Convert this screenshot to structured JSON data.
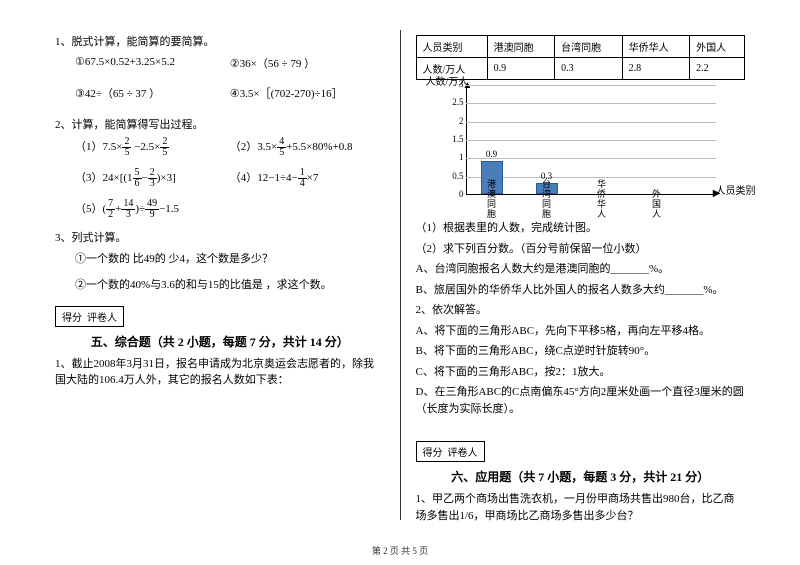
{
  "left": {
    "p1_title": "1、脱式计算，能简算的要简算。",
    "p1_items": [
      "①67.5×0.52+3.25×5.2",
      "②36×（56 ÷ 79 ）",
      "③42÷（65 ÷ 37 ）",
      "④3.5×［(702-270)÷16］"
    ],
    "p2_title": "2、计算，能简算得写出过程。",
    "p2_1_pre": "（1）7.5×",
    "p2_1_f1n": "2",
    "p2_1_f1d": "5",
    "p2_1_mid": " −2.5×",
    "p2_1_f2n": "2",
    "p2_1_f2d": "5",
    "p2_2_pre": "（2）",
    "p2_2_a": "3.5×",
    "p2_2_fn": "4",
    "p2_2_fd": "5",
    "p2_2_b": "+5.5×80%+0.8",
    "p2_3_pre": "（3）",
    "p2_3_a": "24×",
    "p2_3_lb": "[(",
    "p2_3_f1n": "5",
    "p2_3_f1d": "6",
    "p2_3_m": "−",
    "p2_3_f2n": "2",
    "p2_3_f2d": "3",
    "p2_3_rb": ")×3]",
    "p2_4_pre": "（4）12−1÷4−",
    "p2_4_fn": "1",
    "p2_4_fd": "4",
    "p2_4_suf": "×7",
    "p2_5_pre": "（5）",
    "p2_5_lb": "(",
    "p2_5_f1n": "7",
    "p2_5_f1d": "2",
    "p2_5_p": "+",
    "p2_5_f2n": "14",
    "p2_5_f2d": "3",
    "p2_5_rb": ")÷",
    "p2_5_f3n": "49",
    "p2_5_f3d": "9",
    "p2_5_suf": "−1.5",
    "p3_title": "3、列式计算。",
    "p3_1": "①一个数的 比49的 少4，这个数是多少？",
    "p3_2": "②一个数的40%与3.6的和与15的比值是 ，求这个数。",
    "score_label": "得分",
    "grader_label": "评卷人",
    "sec5_title": "五、综合题（共 2 小题，每题 7 分，共计 14 分）",
    "q5_1": "1、截止2008年3月31日，报名申请成为北京奥运会志愿者的，除我国大陆的106.4万人外，其它的报名人数如下表："
  },
  "right": {
    "table_headers": [
      "人员类别",
      "港澳同胞",
      "台湾同胞",
      "华侨华人",
      "外国人"
    ],
    "table_row_label": "人数/万人",
    "table_values": [
      "0.9",
      "0.3",
      "2.8",
      "2.2"
    ],
    "chart": {
      "y_title": "人数/万人",
      "y_ticks": [
        0,
        0.5,
        1,
        1.5,
        2,
        2.5,
        3
      ],
      "categories": [
        "港澳同胞",
        "台湾同胞",
        "华侨华人",
        "外国人"
      ],
      "values": [
        0.9,
        0.3,
        null,
        null
      ],
      "value_labels": [
        "0.9",
        "0.3",
        "",
        ""
      ],
      "x_title": "人员类别",
      "bar_color": "#4a7ebb",
      "grid_color": "#bbbbbb",
      "ymax": 3
    },
    "q_lines": [
      "（1）根据表里的人数，完成统计图。",
      "（2）求下列百分数。（百分号前保留一位小数）",
      "A、台湾同胞报名人数大约是港澳同胞的_______%。",
      "B、旅居国外的华侨华人比外国人的报名人数多大约_______%。",
      "2、依次解答。",
      "A、将下面的三角形ABC，先向下平移5格，再向左平移4格。",
      "B、将下面的三角形ABC，绕C点逆时针旋转90°。",
      "C、将下面的三角形ABC，按2：1放大。",
      "D、在三角形ABC的C点南偏东45°方向2厘米处画一个直径3厘米的圆（长度为实际长度）。"
    ],
    "score_label": "得分",
    "grader_label": "评卷人",
    "sec6_title": "六、应用题（共 7 小题，每题 3 分，共计 21 分）",
    "q6_1": "1、甲乙两个商场出售洗衣机，一月份甲商场共售出980台，比乙商场多售出1/6，甲商场比乙商场多售出多少台？"
  },
  "footer": "第 2 页 共 5 页"
}
